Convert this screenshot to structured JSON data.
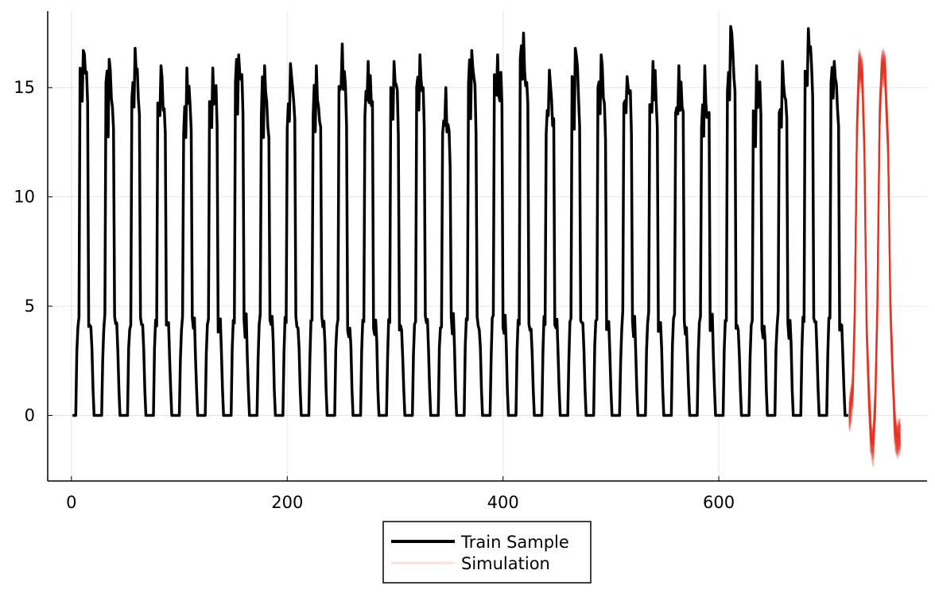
{
  "chart_data": {
    "type": "line",
    "title": "",
    "xlabel": "",
    "ylabel": "",
    "xlim": [
      -22,
      793
    ],
    "ylim": [
      -3,
      18.5
    ],
    "xticks": [
      0,
      200,
      400,
      600
    ],
    "yticks": [
      0,
      5,
      10,
      15
    ],
    "grid": true,
    "legend": {
      "position": "bottom-outside"
    },
    "series": [
      {
        "name": "Train Sample",
        "color": "#000000",
        "style": "solid",
        "pattern": {
          "description": "repeating daily cycle: zero floor, ramp to ~4, jump to ~14-17 peak plateau, drop to ~4, fall to 0",
          "period": 24,
          "cycles": 30,
          "start_x": 1,
          "end_x": 720,
          "points_per_cycle": [
            [
              0,
              0
            ],
            [
              1,
              0
            ],
            [
              2,
              0
            ],
            [
              3,
              0
            ],
            [
              4,
              2.8
            ],
            [
              5,
              4.2
            ],
            [
              6,
              4.4
            ],
            [
              7,
              14.6
            ],
            [
              8,
              15.2
            ],
            [
              9,
              13.8
            ],
            [
              10,
              16.5
            ],
            [
              11,
              15.5
            ],
            [
              12,
              15.0
            ],
            [
              13,
              14.8
            ],
            [
              14,
              13.6
            ],
            [
              15,
              4.2
            ],
            [
              16,
              3.9
            ],
            [
              17,
              4.3
            ],
            [
              18,
              3.0
            ],
            [
              19,
              1.2
            ],
            [
              20,
              0
            ],
            [
              21,
              0
            ],
            [
              22,
              0
            ],
            [
              23,
              0
            ]
          ],
          "peak_values": [
            16.7,
            16.3,
            16.8,
            16.0,
            15.9,
            15.9,
            16.5,
            16.0,
            16.1,
            16.0,
            17.0,
            16.2,
            16.2,
            16.5,
            15.0,
            16.7,
            16.5,
            17.5,
            15.8,
            16.8,
            16.5,
            15.5,
            16.2,
            16.0,
            16.0,
            17.8,
            16.0,
            16.2,
            17.7,
            16.2
          ]
        }
      },
      {
        "name": "Simulation",
        "color": "#e5321f",
        "style": "ensemble",
        "x_start": 721,
        "x_end": 768,
        "approx_curve": [
          [
            721,
            0.0
          ],
          [
            724,
            1.0
          ],
          [
            726,
            4.5
          ],
          [
            728,
            13.0
          ],
          [
            730,
            16.0
          ],
          [
            733,
            15.5
          ],
          [
            735,
            12.0
          ],
          [
            737,
            4.0
          ],
          [
            739,
            1.0
          ],
          [
            741,
            -1.0
          ],
          [
            743,
            -1.5
          ],
          [
            745,
            0.5
          ],
          [
            747,
            5.0
          ],
          [
            749,
            13.5
          ],
          [
            751,
            16.0
          ],
          [
            754,
            15.8
          ],
          [
            757,
            12.0
          ],
          [
            759,
            5.0
          ],
          [
            761,
            2.0
          ],
          [
            763,
            -0.5
          ],
          [
            765,
            -1.2
          ],
          [
            768,
            -1.0
          ]
        ]
      }
    ]
  }
}
